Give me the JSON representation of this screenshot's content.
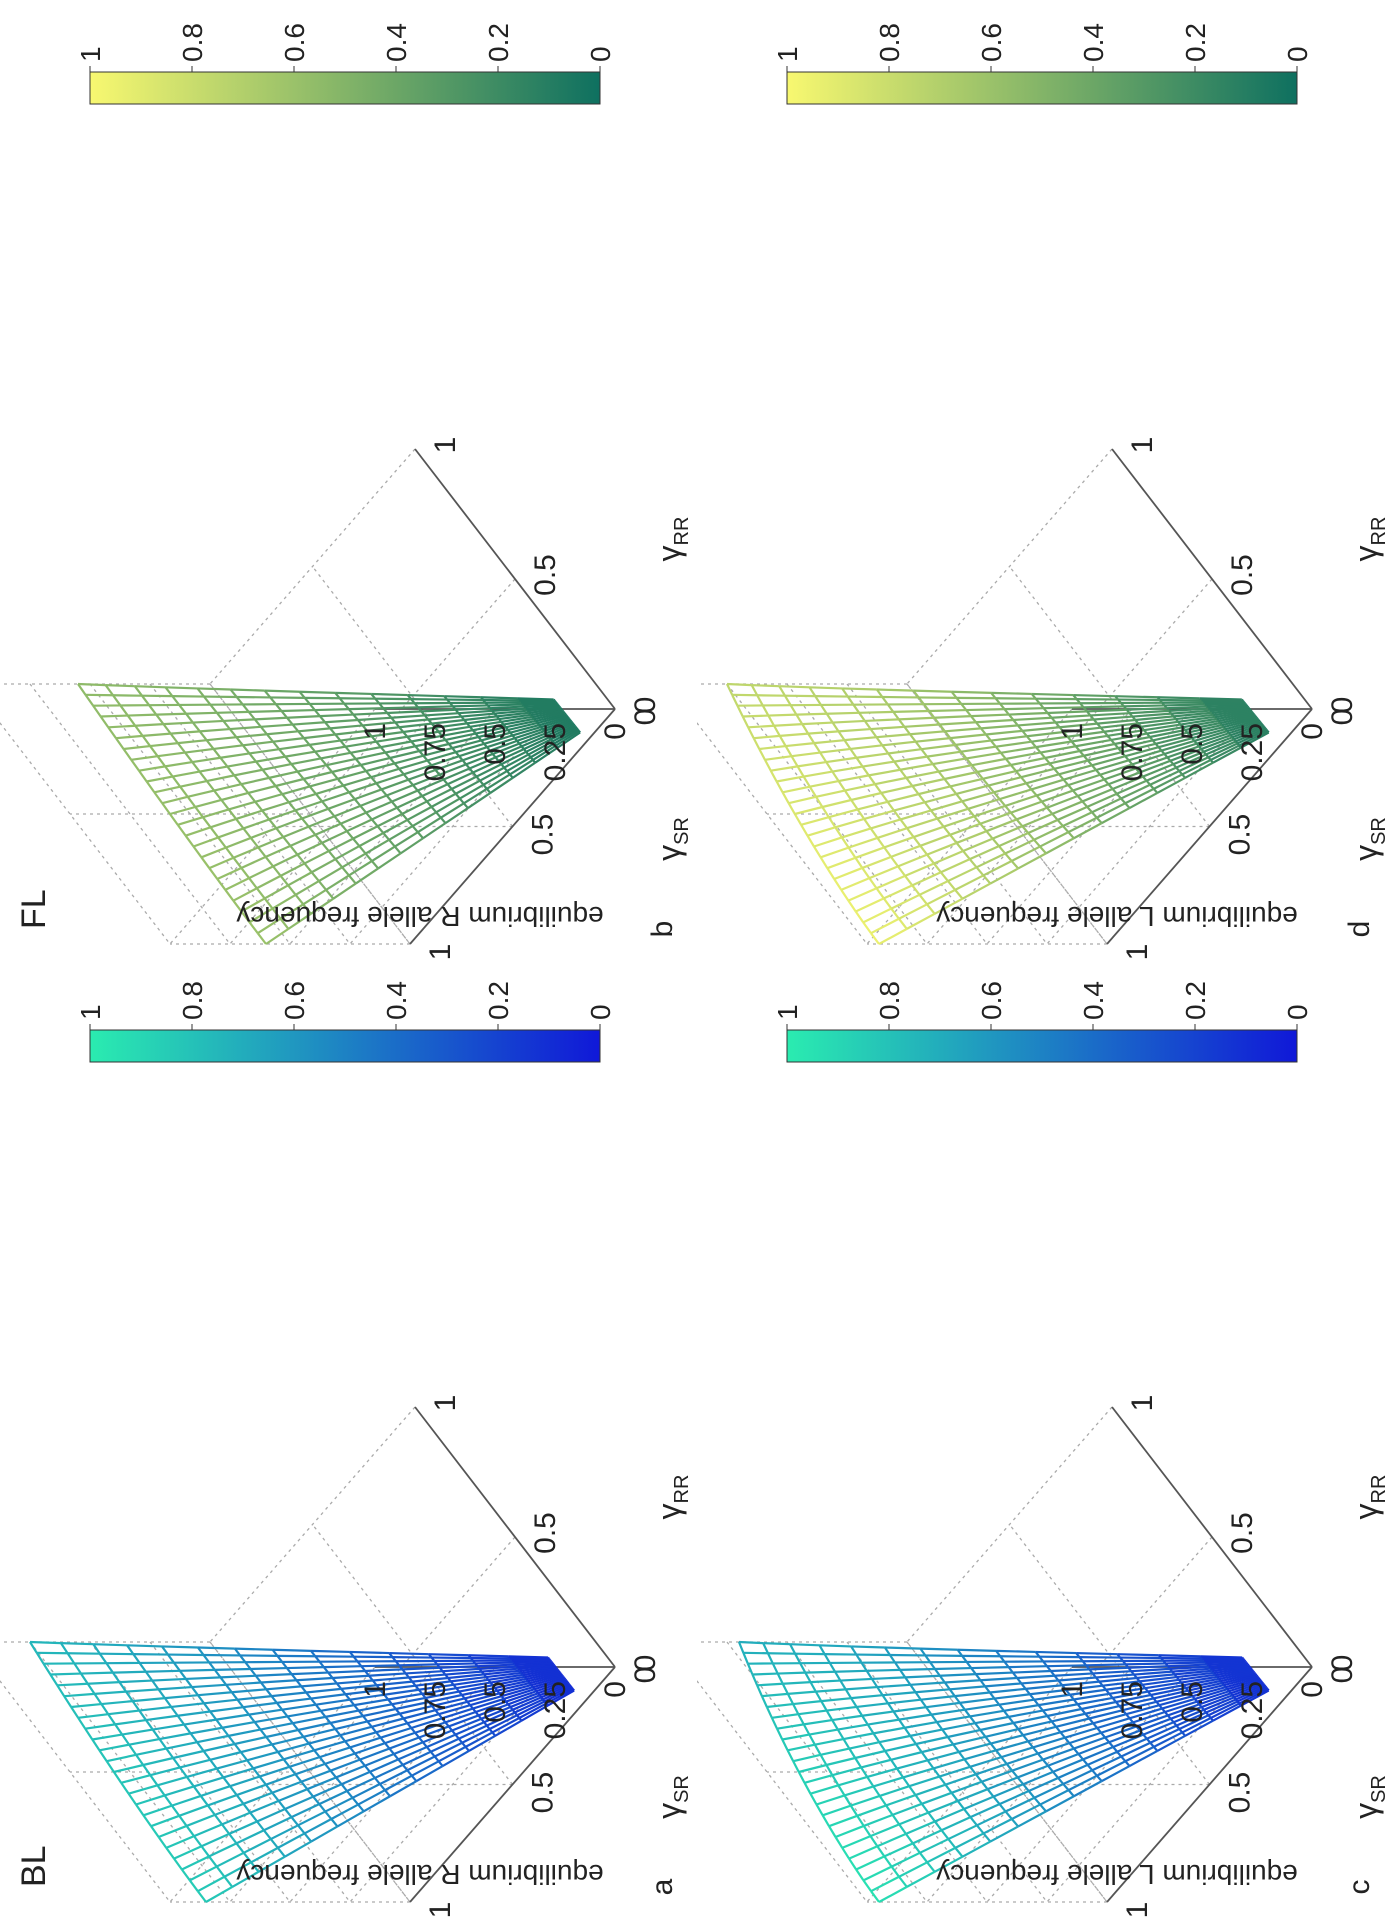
{
  "chart_data": [
    {
      "type": "surface",
      "panel_letter": "a",
      "title": "BL",
      "ylabel": "equilibrium R allele frequency",
      "xlabel_left": {
        "base": "γ",
        "sub": "SR"
      },
      "xlabel_right": {
        "base": "γ",
        "sub": "RR"
      },
      "x_ticks": [
        "0",
        "0.5",
        "1"
      ],
      "y_ticks": [
        "0",
        "0.5",
        "1"
      ],
      "z_ticks": [
        "0",
        "0.25",
        "0.5",
        "0.75",
        "1"
      ],
      "zlim": [
        0,
        1
      ],
      "grid": true,
      "colormap": [
        "#1018d8",
        "#2aecb0"
      ],
      "colorbar_ticks": [
        "0",
        "0.2",
        "0.4",
        "0.6",
        "0.8",
        "1"
      ],
      "surface_model": {
        "left_edge_peak": 0.85,
        "tip_value": 0.75,
        "front_rise": 0.3
      }
    },
    {
      "type": "surface",
      "panel_letter": "b",
      "title": "FL",
      "ylabel": "equilibrium R allele frequency",
      "xlabel_left": {
        "base": "γ",
        "sub": "SR"
      },
      "xlabel_right": {
        "base": "γ",
        "sub": "RR"
      },
      "x_ticks": [
        "0",
        "0.5",
        "1"
      ],
      "y_ticks": [
        "0",
        "0.5",
        "1"
      ],
      "z_ticks": [
        "0",
        "0.25",
        "0.5",
        "0.75",
        "1"
      ],
      "zlim": [
        0,
        1
      ],
      "grid": true,
      "colormap": [
        "#0e7060",
        "#f8f870"
      ],
      "colorbar_ticks": [
        "0",
        "0.2",
        "0.4",
        "0.6",
        "0.8",
        "1"
      ],
      "surface_model": {
        "left_edge_peak": 0.6,
        "tip_value": 0.55,
        "front_rise": 0.4
      }
    },
    {
      "type": "surface",
      "panel_letter": "c",
      "title": "",
      "ylabel": "equilibrium L allele frequency",
      "xlabel_left": {
        "base": "γ",
        "sub": "SR"
      },
      "xlabel_right": {
        "base": "γ",
        "sub": "RR"
      },
      "x_ticks": [
        "0",
        "0.5",
        "1"
      ],
      "y_ticks": [
        "0",
        "0.5",
        "1"
      ],
      "z_ticks": [
        "0",
        "0.25",
        "0.5",
        "0.75",
        "1"
      ],
      "zlim": [
        0,
        1
      ],
      "grid": true,
      "colormap": [
        "#1018d8",
        "#2aecb0"
      ],
      "colorbar_ticks": [
        "0",
        "0.2",
        "0.4",
        "0.6",
        "0.8",
        "1"
      ],
      "surface_model": {
        "left_edge_peak": 0.95,
        "tip_value": 0.7,
        "front_rise": 0.5
      }
    },
    {
      "type": "surface",
      "panel_letter": "d",
      "title": "",
      "ylabel": "equilibrium L allele frequency",
      "xlabel_left": {
        "base": "γ",
        "sub": "SR"
      },
      "xlabel_right": {
        "base": "γ",
        "sub": "RR"
      },
      "x_ticks": [
        "0",
        "0.5",
        "1"
      ],
      "y_ticks": [
        "0",
        "0.5",
        "1"
      ],
      "z_ticks": [
        "0",
        "0.25",
        "0.5",
        "0.75",
        "1"
      ],
      "zlim": [
        0,
        1
      ],
      "grid": true,
      "colormap": [
        "#0e7060",
        "#f8f870"
      ],
      "colorbar_ticks": [
        "0",
        "0.2",
        "0.4",
        "0.6",
        "0.8",
        "1"
      ],
      "surface_model": {
        "left_edge_peak": 0.95,
        "tip_value": 0.75,
        "front_rise": 0.6
      }
    }
  ]
}
